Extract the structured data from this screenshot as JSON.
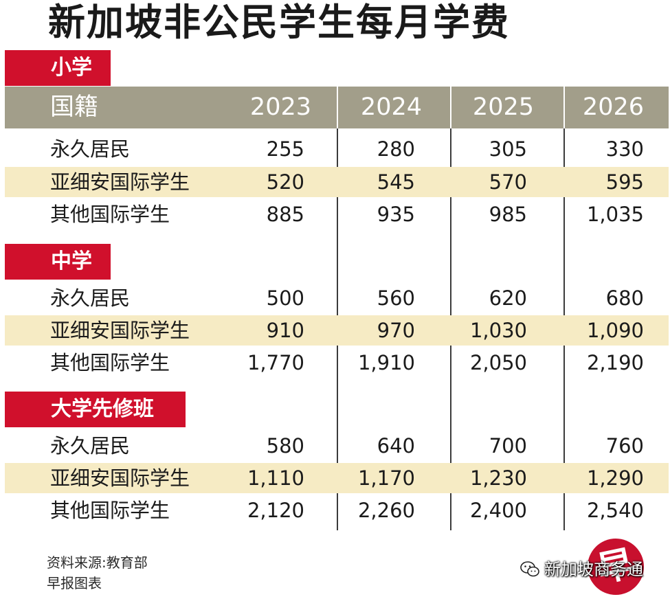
{
  "title": "新加坡非公民学生每月学费",
  "header": {
    "label": "国籍",
    "years": [
      "2023",
      "2024",
      "2025",
      "2026"
    ]
  },
  "sections": [
    {
      "name": "小学",
      "rows": [
        {
          "label": "永久居民",
          "values": [
            "255",
            "280",
            "305",
            "330"
          ]
        },
        {
          "label": "亚细安国际学生",
          "values": [
            "520",
            "545",
            "570",
            "595"
          ]
        },
        {
          "label": "其他国际学生",
          "values": [
            "885",
            "935",
            "985",
            "1,035"
          ]
        }
      ]
    },
    {
      "name": "中学",
      "rows": [
        {
          "label": "永久居民",
          "values": [
            "500",
            "560",
            "620",
            "680"
          ]
        },
        {
          "label": "亚细安国际学生",
          "values": [
            "910",
            "970",
            "1,030",
            "1,090"
          ]
        },
        {
          "label": "其他国际学生",
          "values": [
            "1,770",
            "1,910",
            "2,050",
            "2,190"
          ]
        }
      ]
    },
    {
      "name": "大学先修班",
      "rows": [
        {
          "label": "永久居民",
          "values": [
            "580",
            "640",
            "700",
            "760"
          ]
        },
        {
          "label": "亚细安国际学生",
          "values": [
            "1,110",
            "1,170",
            "1,230",
            "1,290"
          ]
        },
        {
          "label": "其他国际学生",
          "values": [
            "2,120",
            "2,260",
            "2,400",
            "2,540"
          ]
        }
      ]
    }
  ],
  "footer": {
    "source": "资料来源:教育部",
    "credit": "早报图表"
  },
  "watermark": "新加坡商务通",
  "logo_char": "早",
  "colors": {
    "section_tag": "#d0102c",
    "header_band": "#a29e8a",
    "highlight_row": "#f6ebc4"
  }
}
